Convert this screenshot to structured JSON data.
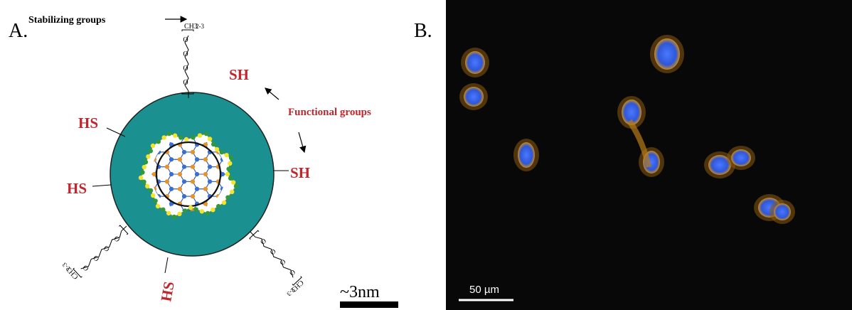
{
  "panel_a": {
    "label": "A.",
    "stabilizing_label": "Stabilizing groups",
    "functional_label": "Functional groups",
    "thiol_groups": [
      "SH",
      "SH",
      "HS",
      "HS",
      "HS"
    ],
    "chains": [
      {
        "oxygens": [
          "O",
          "O",
          "O",
          "O"
        ],
        "end": "CH3",
        "repeat": "2-3"
      },
      {
        "oxygens": [
          "O",
          "O",
          "O",
          "O"
        ],
        "end": "CH3",
        "repeat": "2-3"
      },
      {
        "oxygens": [
          "O",
          "O",
          "O",
          "O"
        ],
        "end": "CH3",
        "repeat": "2-3"
      }
    ],
    "scale": "~3nm"
  },
  "panel_b": {
    "label": "B.",
    "scale": "50 µm"
  }
}
